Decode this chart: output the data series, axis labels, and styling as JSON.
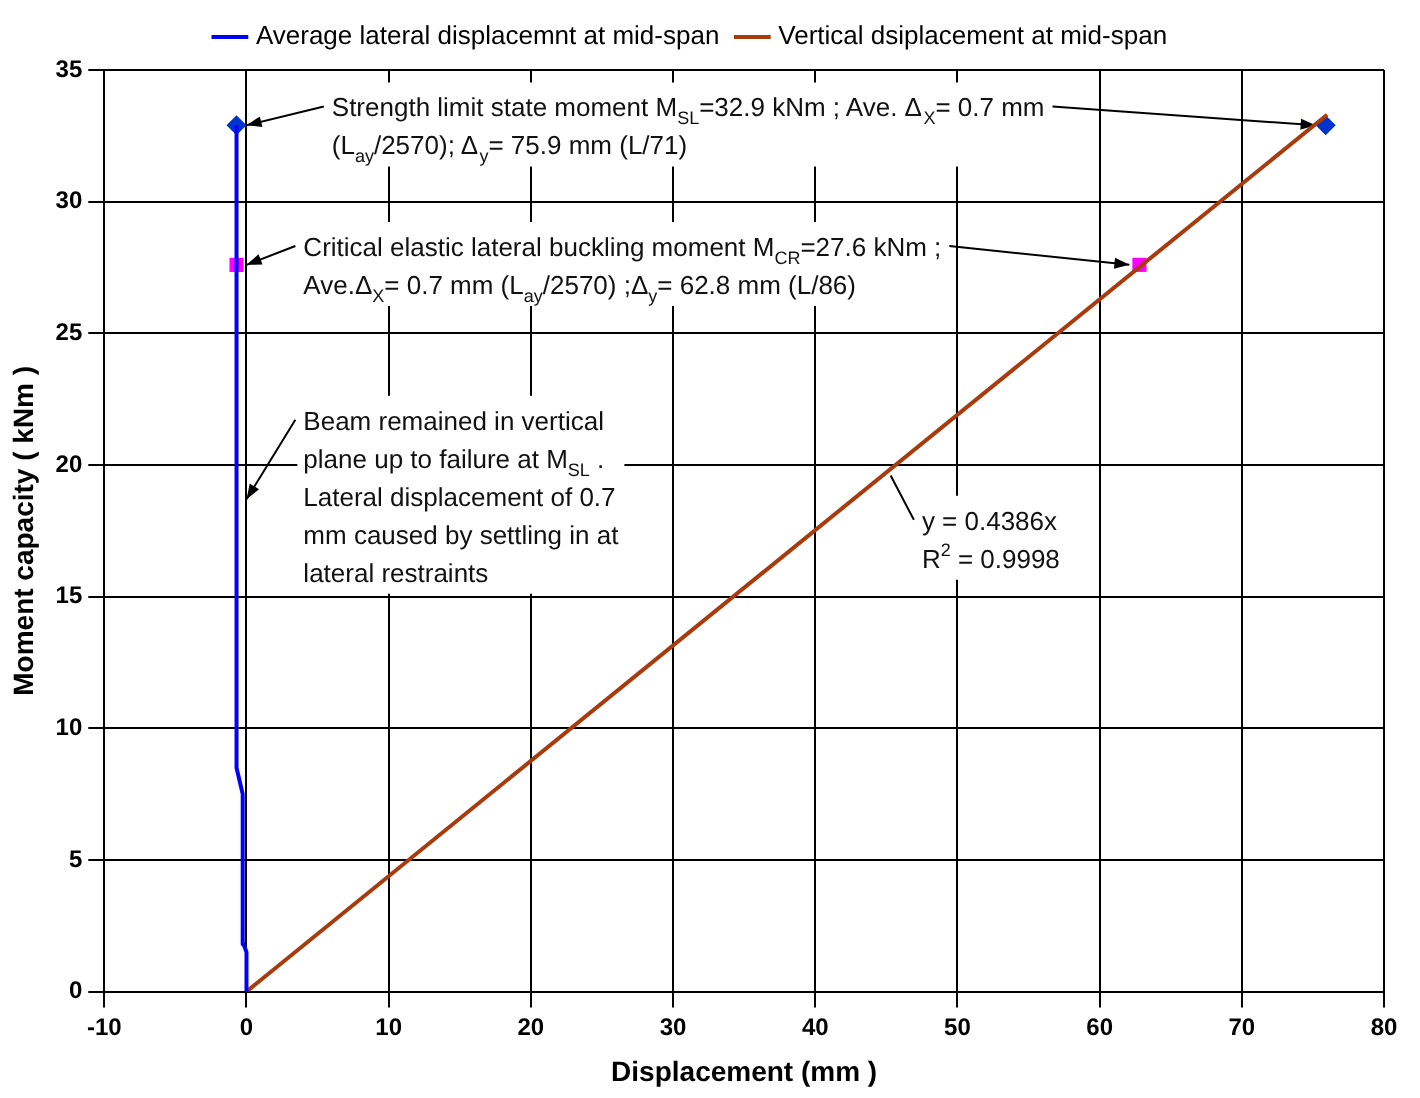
{
  "chart_data": {
    "type": "line",
    "xlabel": "Displacement (mm )",
    "ylabel": "Moment capacity ( kNm )",
    "xlim": [
      -10,
      80
    ],
    "xticks": [
      -10,
      0,
      10,
      20,
      30,
      40,
      50,
      60,
      70,
      80
    ],
    "ylim": [
      0,
      35
    ],
    "yticks": [
      0,
      5,
      10,
      15,
      20,
      25,
      30,
      35
    ],
    "grid": true,
    "legend": "top",
    "series": [
      {
        "name": "Average lateral displacemnt at mid-span",
        "type": "line",
        "color": "#0000ff",
        "marker": "none",
        "x": [
          0,
          0,
          -0.2,
          -0.2,
          -0.3,
          -0.3,
          -0.7,
          -0.7
        ],
        "values": [
          0,
          1.5,
          1.8,
          4,
          4.5,
          7.5,
          8.5,
          32.9
        ]
      },
      {
        "name": "Vertical dsiplacement at mid-span",
        "type": "line",
        "color": "#a83a0c",
        "marker": "none",
        "x": [
          0,
          76
        ],
        "values": [
          0,
          33.3
        ]
      },
      {
        "type": "scatter",
        "color": "#0033cc",
        "marker": "diamond",
        "x": [
          -0.7,
          75.9
        ],
        "values": [
          32.9,
          32.9
        ]
      },
      {
        "type": "scatter",
        "color": "#ff00ff",
        "marker": "square",
        "x": [
          -0.7,
          62.8
        ],
        "values": [
          27.6,
          27.6
        ]
      }
    ],
    "annotations": [
      "Strength limit state moment M$_{SL}$=32.9 kNm ; Ave. Δ$_{X}$= 0.7 mm (L$_{ay}$/2570); Δ$_{y}$= 75.9 mm (L/71)",
      "Critical elastic lateral buckling moment M$_{CR}$=27.6 kNm ; Ave.Δ$_{X}$= 0.7 mm (L$_{ay}$/2570) ;Δ$_{y}$= 62.8 mm (L/86)",
      {
        "text": "Beam remained in vertical plane up to failure at M$_{SL}$ . Lateral displacement of 0.7 mm caused by settling in at lateral restraints",
        "x": -0.7,
        "y": 18.7
      },
      {
        "text": "y = 0.4386x R$^{2}$ = 0.9998",
        "x": 44.6,
        "y": 19.6
      }
    ]
  }
}
